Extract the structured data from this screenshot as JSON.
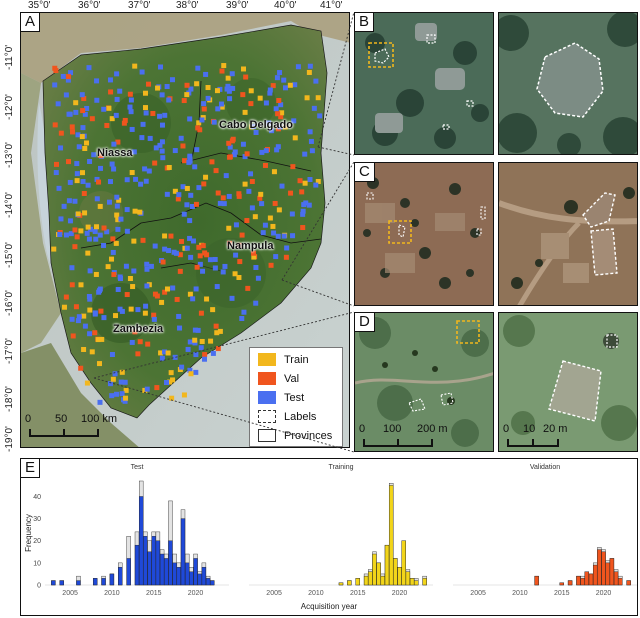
{
  "panels": {
    "A": "A",
    "B": "B",
    "C": "C",
    "D": "D",
    "E": "E"
  },
  "map": {
    "lon_ticks": [
      "35°0'",
      "36°0'",
      "37°0'",
      "38°0'",
      "39°0'",
      "40°0'",
      "41°0'"
    ],
    "lat_ticks": [
      "-11°0'",
      "-12°0'",
      "-13°0'",
      "-14°0'",
      "-15°0'",
      "-16°0'",
      "-17°0'",
      "-18°0'",
      "-19°0'"
    ],
    "provinces": [
      "Niassa",
      "Cabo Delgado",
      "Nampula",
      "Zambezia"
    ],
    "scalebar": {
      "ticks": [
        "0",
        "50",
        "100 km"
      ]
    },
    "legend": [
      {
        "label": "Train",
        "color": "#f2b71d",
        "kind": "fill"
      },
      {
        "label": "Val",
        "color": "#f0551e",
        "kind": "fill"
      },
      {
        "label": "Test",
        "color": "#4a6ff0",
        "kind": "fill"
      },
      {
        "label": "Labels",
        "color": "#ffffff",
        "kind": "dashed"
      },
      {
        "label": "Provinces",
        "color": "#ffffff",
        "kind": "solid"
      }
    ]
  },
  "insets": {
    "D_scalebar_left": [
      "0",
      "100",
      "200 m"
    ],
    "D_scalebar_right": [
      "0",
      "10",
      "20 m"
    ]
  },
  "chart_data": {
    "type": "bar",
    "stacked": true,
    "ylabel": "Frequency",
    "xlabel": "Acquisition year",
    "ylim": [
      0,
      47
    ],
    "yticks": [
      0,
      10,
      20,
      30,
      40
    ],
    "xticks": [
      2005,
      2010,
      2015,
      2020
    ],
    "xlim": [
      2002,
      2024
    ],
    "facets": [
      {
        "title": "Test",
        "color": "#1f49d8",
        "years": [
          2003,
          2004,
          2006,
          2008,
          2009,
          2010,
          2011,
          2012,
          2013,
          2013.5,
          2014,
          2014.5,
          2015,
          2015.5,
          2016,
          2016.5,
          2017,
          2017.5,
          2018,
          2018.5,
          2019,
          2019.5,
          2020,
          2020.5,
          2021,
          2021.5,
          2022
        ],
        "values": [
          2,
          2,
          2,
          3,
          3,
          5,
          8,
          12,
          18,
          40,
          22,
          15,
          22,
          20,
          14,
          12,
          20,
          10,
          8,
          30,
          10,
          6,
          12,
          5,
          8,
          3,
          2
        ],
        "totals": [
          2,
          2,
          4,
          3,
          4,
          5,
          10,
          22,
          24,
          47,
          24,
          20,
          24,
          24,
          16,
          14,
          38,
          14,
          10,
          34,
          14,
          8,
          14,
          6,
          10,
          4,
          2
        ]
      },
      {
        "title": "Training",
        "color": "#f2d51a",
        "years": [
          2013,
          2014,
          2015,
          2016,
          2016.5,
          2017,
          2017.5,
          2018,
          2018.5,
          2019,
          2019.5,
          2020,
          2020.5,
          2021,
          2021.5,
          2022,
          2023
        ],
        "values": [
          1,
          2,
          3,
          4,
          6,
          14,
          10,
          4,
          18,
          45,
          12,
          8,
          20,
          6,
          3,
          2,
          3
        ],
        "totals": [
          1,
          2,
          3,
          5,
          7,
          15,
          10,
          5,
          18,
          46,
          12,
          8,
          20,
          7,
          3,
          3,
          4
        ]
      },
      {
        "title": "Validation",
        "color": "#f0551e",
        "years": [
          2012,
          2015,
          2016,
          2017,
          2017.5,
          2018,
          2018.5,
          2019,
          2019.5,
          2020,
          2020.5,
          2021,
          2021.5,
          2022,
          2023
        ],
        "values": [
          4,
          1,
          2,
          4,
          3,
          6,
          5,
          9,
          16,
          15,
          10,
          12,
          6,
          3,
          2
        ],
        "totals": [
          4,
          1,
          2,
          4,
          4,
          6,
          5,
          10,
          17,
          16,
          11,
          12,
          7,
          4,
          2
        ]
      }
    ]
  }
}
